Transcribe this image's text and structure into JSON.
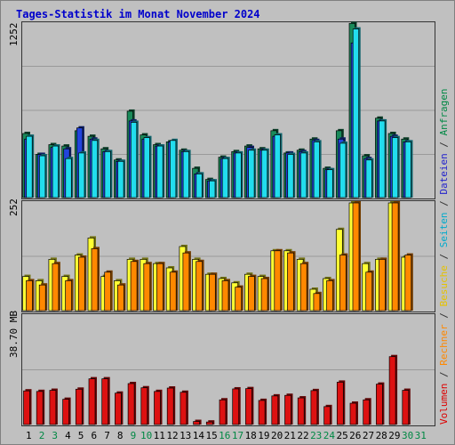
{
  "title": "Tages-Statistik im Monat November 2024",
  "panels": {
    "top_max_label": "1252",
    "mid_max_label": "252",
    "bot_max_label": "38.70 MB"
  },
  "right_legend": [
    {
      "text": "Volumen",
      "color": "#dd0000"
    },
    {
      "text": " / ",
      "color": "#333333"
    },
    {
      "text": "Rechner",
      "color": "#ff8800"
    },
    {
      "text": " / ",
      "color": "#333333"
    },
    {
      "text": "Besuche",
      "color": "#e6c200"
    },
    {
      "text": " / ",
      "color": "#333333"
    },
    {
      "text": "Seiten",
      "color": "#00aacc"
    },
    {
      "text": " / ",
      "color": "#333333"
    },
    {
      "text": "Dateien",
      "color": "#2222cc"
    },
    {
      "text": " / ",
      "color": "#333333"
    },
    {
      "text": "Anfragen",
      "color": "#008844"
    }
  ],
  "colors": {
    "title": "#0000cc",
    "weekday": "#000000",
    "weekend": "#008844",
    "anfragen": "#1a8a5a",
    "dateien": "#2244dd",
    "seiten": "#22ddee",
    "besuche": "#ffff33",
    "rechner": "#ff8800",
    "volumen": "#dd1111"
  },
  "chart_data": {
    "type": "bar",
    "title": "Tages-Statistik im Monat November 2024",
    "categories": [
      "1",
      "2",
      "3",
      "4",
      "5",
      "6",
      "7",
      "8",
      "9",
      "10",
      "11",
      "12",
      "13",
      "14",
      "15",
      "16",
      "17",
      "18",
      "19",
      "20",
      "21",
      "22",
      "23",
      "24",
      "25",
      "26",
      "27",
      "28",
      "29",
      "30",
      "31"
    ],
    "weekend_days": [
      "2",
      "3",
      "9",
      "10",
      "16",
      "17",
      "23",
      "24",
      "30",
      "31"
    ],
    "ylim_top": [
      0,
      1252
    ],
    "ylim_mid": [
      0,
      252
    ],
    "ylim_bot_mb": [
      0,
      38.7
    ],
    "series": [
      {
        "name": "Anfragen",
        "values": [
          460,
          310,
          380,
          370,
          480,
          440,
          350,
          270,
          620,
          450,
          380,
          400,
          340,
          210,
          130,
          290,
          330,
          370,
          350,
          480,
          320,
          340,
          420,
          210,
          480,
          1250,
          300,
          570,
          460,
          420,
          0
        ]
      },
      {
        "name": "Dateien",
        "values": [
          420,
          310,
          360,
          350,
          500,
          420,
          330,
          260,
          550,
          420,
          370,
          400,
          330,
          170,
          120,
          280,
          320,
          360,
          340,
          440,
          320,
          330,
          410,
          200,
          420,
          1110,
          280,
          550,
          440,
          400,
          0
        ]
      },
      {
        "name": "Seiten",
        "values": [
          440,
          300,
          370,
          280,
          320,
          410,
          330,
          260,
          540,
          430,
          370,
          410,
          330,
          170,
          120,
          280,
          320,
          340,
          340,
          450,
          310,
          320,
          400,
          200,
          390,
          1210,
          270,
          550,
          430,
          400,
          0
        ]
      },
      {
        "name": "Besuche",
        "values": [
          80,
          70,
          120,
          80,
          130,
          170,
          80,
          70,
          120,
          120,
          110,
          100,
          150,
          120,
          85,
          75,
          65,
          85,
          80,
          140,
          140,
          120,
          50,
          75,
          190,
          252,
          110,
          120,
          252,
          125,
          0
        ]
      },
      {
        "name": "Rechner",
        "values": [
          70,
          60,
          110,
          70,
          125,
          145,
          90,
          60,
          115,
          110,
          110,
          90,
          135,
          115,
          85,
          70,
          55,
          80,
          75,
          140,
          135,
          110,
          40,
          70,
          130,
          252,
          90,
          120,
          252,
          130,
          0
        ]
      },
      {
        "name": "Volumen (MB)",
        "values": [
          12,
          11.8,
          12.2,
          9,
          12.6,
          16.3,
          16.3,
          11.2,
          14.6,
          13.1,
          11.8,
          13,
          11.5,
          1.1,
          0.9,
          8.8,
          12.7,
          12.8,
          8.6,
          10.2,
          10.4,
          9.5,
          12.1,
          6.4,
          15.1,
          7.6,
          8.8,
          14.4,
          24.2,
          12.2,
          0
        ]
      }
    ]
  }
}
